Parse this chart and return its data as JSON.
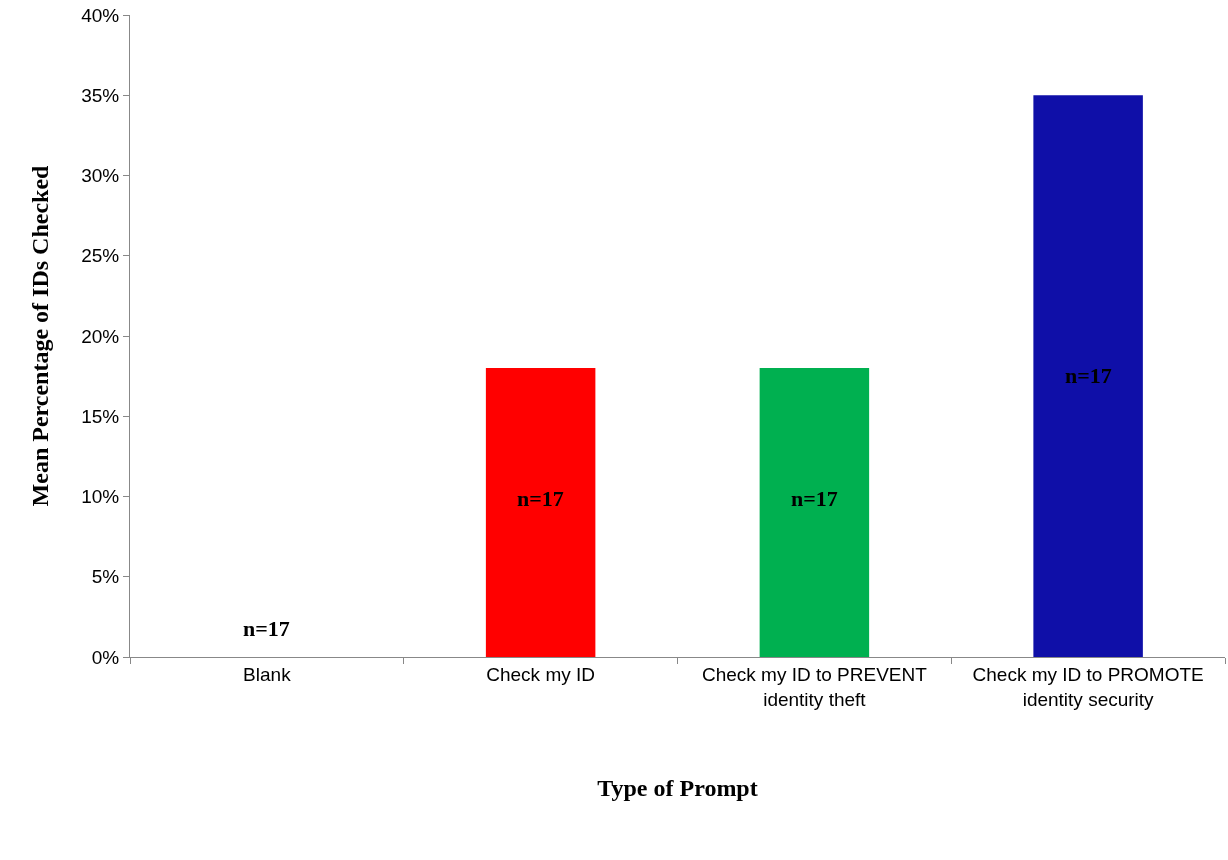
{
  "chart_data": {
    "type": "bar",
    "xlabel": "Type of Prompt",
    "ylabel": "Mean Percentage of IDs Checked",
    "categories": [
      "Blank",
      "Check my ID",
      "Check my ID to PREVENT identity theft",
      "Check my ID to PROMOTE identity security"
    ],
    "values": [
      0,
      18,
      18,
      35
    ],
    "colors": [
      "#ffffff",
      "#ff0000",
      "#00b050",
      "#0f0fa8"
    ],
    "ylim": [
      0,
      40
    ],
    "yticks": [
      {
        "value": 0,
        "label": "0%"
      },
      {
        "value": 5,
        "label": "5%"
      },
      {
        "value": 10,
        "label": "10%"
      },
      {
        "value": 15,
        "label": "15%"
      },
      {
        "value": 20,
        "label": "20%"
      },
      {
        "value": 25,
        "label": "25%"
      },
      {
        "value": 30,
        "label": "30%"
      },
      {
        "value": 35,
        "label": "35%"
      },
      {
        "value": 40,
        "label": "40%"
      }
    ],
    "grid": false,
    "annotations": [
      "n=17",
      "n=17",
      "n=17",
      "n=17"
    ]
  }
}
